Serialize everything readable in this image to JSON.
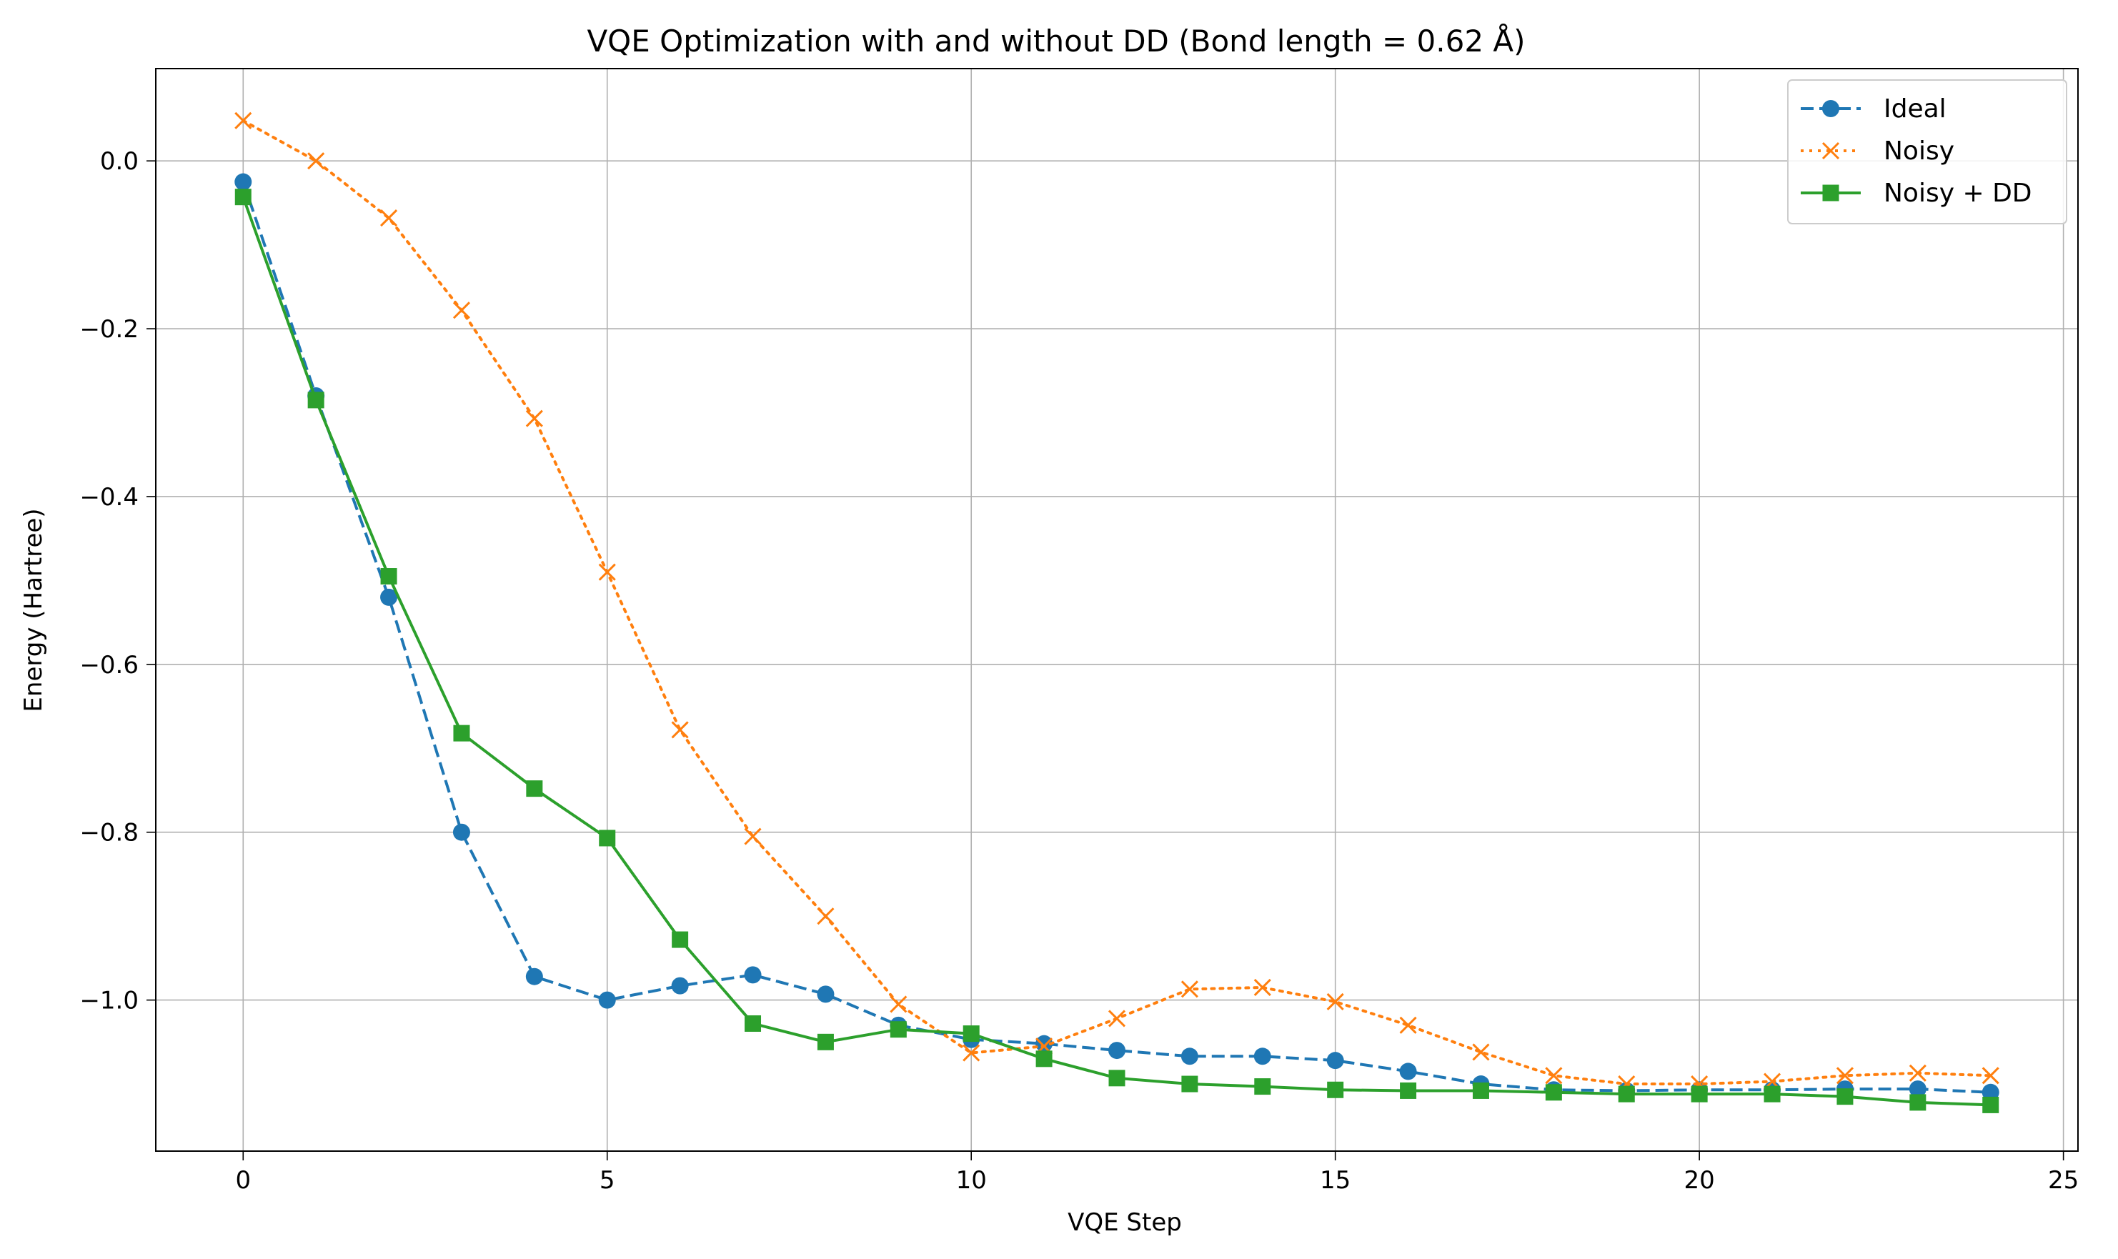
{
  "chart_data": {
    "type": "line",
    "title": "VQE Optimization with and without DD (Bond length = 0.62 Å)",
    "xlabel": "VQE Step",
    "ylabel": "Energy (Hartree)",
    "xlim": [
      -1.2,
      25.2
    ],
    "ylim": [
      -1.18,
      0.11
    ],
    "xticks": [
      0,
      5,
      10,
      15,
      20,
      25
    ],
    "xtick_labels": [
      "0",
      "5",
      "10",
      "15",
      "20",
      "25"
    ],
    "yticks": [
      0.0,
      -0.2,
      -0.4,
      -0.6,
      -0.8,
      -1.0
    ],
    "ytick_labels": [
      "0.0",
      "−0.2",
      "−0.4",
      "−0.6",
      "−0.8",
      "−1.0"
    ],
    "grid": true,
    "legend_position": "top-right",
    "x": [
      0,
      1,
      2,
      3,
      4,
      5,
      6,
      7,
      8,
      9,
      10,
      11,
      12,
      13,
      14,
      15,
      16,
      17,
      18,
      19,
      20,
      21,
      22,
      23,
      24
    ],
    "series": [
      {
        "name": "Ideal",
        "color": "#1f77b4",
        "line_style": "dashed",
        "marker": "circle",
        "values": [
          -0.025,
          -0.28,
          -0.52,
          -0.8,
          -0.972,
          -1.0,
          -0.983,
          -0.97,
          -0.993,
          -1.03,
          -1.047,
          -1.052,
          -1.06,
          -1.067,
          -1.067,
          -1.072,
          -1.085,
          -1.1,
          -1.107,
          -1.108,
          -1.107,
          -1.107,
          -1.106,
          -1.106,
          -1.11
        ]
      },
      {
        "name": "Noisy",
        "color": "#ff7f0e",
        "line_style": "dotted",
        "marker": "x",
        "values": [
          0.048,
          0.0,
          -0.068,
          -0.178,
          -0.307,
          -0.49,
          -0.678,
          -0.805,
          -0.9,
          -1.005,
          -1.063,
          -1.055,
          -1.022,
          -0.987,
          -0.985,
          -1.002,
          -1.03,
          -1.062,
          -1.09,
          -1.1,
          -1.1,
          -1.097,
          -1.09,
          -1.087,
          -1.09
        ]
      },
      {
        "name": "Noisy + DD",
        "color": "#2ca02c",
        "line_style": "solid",
        "marker": "square",
        "values": [
          -0.043,
          -0.285,
          -0.495,
          -0.682,
          -0.748,
          -0.807,
          -0.928,
          -1.028,
          -1.05,
          -1.035,
          -1.04,
          -1.07,
          -1.093,
          -1.1,
          -1.103,
          -1.107,
          -1.108,
          -1.108,
          -1.11,
          -1.112,
          -1.112,
          -1.112,
          -1.115,
          -1.122,
          -1.125
        ]
      }
    ]
  }
}
